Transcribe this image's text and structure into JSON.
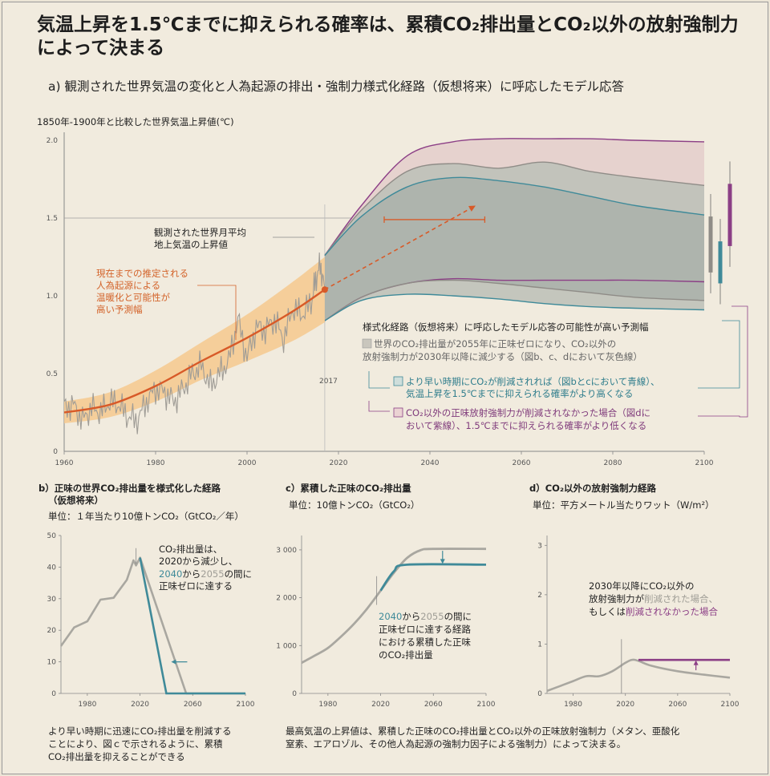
{
  "title": {
    "line1": "気温上昇を1.5℃までに抑えられる確率は、累積CO₂排出量とCO₂以外の放射強制力",
    "line2": "によって決まる"
  },
  "panel_a": {
    "subtitle": "a) 観測された世界気温の変化と人為起源の排出・強制力様式化経路（仮想将来）に呼応したモデル応答",
    "ylabel": "1850年-1900年と比較した世界気温上昇値(℃)",
    "obs_label": [
      "観測された世界月平均",
      "地上気温の上昇値"
    ],
    "est_label": [
      "現在までの推定される",
      "人為起源による",
      "温暖化と可能性が",
      "高い予測幅"
    ],
    "year_marker": "2017",
    "legend_head": "様式化経路（仮想将来）に呼応したモデル応答の可能性が高い予測幅",
    "legend_grey": [
      "世界のCO₂排出量が2055年に正味ゼロになり、CO₂以外の",
      "放射強制力が2030年以降に減少する（図b、c、dにおいて灰色線）"
    ],
    "legend_blue": [
      "より早い時期にCO₂が削減されれば（図bとcにおいて青線）、",
      "気温上昇を1.5℃までに抑えられる確率がより高くなる"
    ],
    "legend_purple": [
      "CO₂以外の正味放射強制力が削減されなかった場合（図dに",
      "おいて紫線）、1.5℃までに抑えられる確率がより低くなる"
    ]
  },
  "panel_b": {
    "title": [
      "b）正味の世界CO₂排出量を様式化した経路",
      "（仮想将来）"
    ],
    "unit": "単位：１年当たり10億トンCO₂（GtCO₂／年）",
    "note": [
      "CO₂排出量は、",
      "2020から減少し、",
      "2040",
      "から",
      "2055",
      "の間に",
      "正味ゼロに達する"
    ]
  },
  "panel_c": {
    "title": "c）累積した正味のCO₂排出量",
    "unit": "単位：10億トンCO₂（GtCO₂）",
    "note": [
      "2040",
      "から",
      "2055",
      "の間に",
      "正味ゼロに達する経路",
      "における累積した正味",
      "のCO₂排出量"
    ]
  },
  "panel_d": {
    "title": "d）CO₂以外の放射強制力経路",
    "unit": "単位：平方メートル当たりワット（W/m²）",
    "note": [
      "2030年以降にCO₂以外の",
      "放射強制力が",
      "削減された場合、",
      "もしくは",
      "削減されなかった場合"
    ]
  },
  "footer_b": [
    "より早い時期に迅速にCO₂排出量を削減する",
    "ことにより、図ｃで示されるように、累積",
    "CO₂排出量を抑えることができる"
  ],
  "footer_cd": [
    "最高気温の上昇値は、累積した正味のCO₂排出量とCO₂以外の正味放射強制力（メタン、亜酸化",
    "窒素、エアロゾル、その他人為起源の強制力因子による強制力）によって決まる。"
  ],
  "colors": {
    "grey": "#a9a7a0",
    "blue": "#3f8a99",
    "purple": "#8c3f86",
    "orange": "#d85a28",
    "band": "#f6c98e"
  },
  "chart_data": [
    {
      "type": "line",
      "xlim": [
        1960,
        2100
      ],
      "ylim": [
        0,
        2.0
      ],
      "xticks": [
        1960,
        1980,
        2000,
        2020,
        2040,
        2060,
        2080,
        2100
      ],
      "yticks": [
        "0",
        "0.5",
        "1.0",
        "1.5",
        "2.0"
      ],
      "observed": {
        "x": [
          1960,
          1962,
          1964,
          1966,
          1968,
          1970,
          1972,
          1974,
          1976,
          1978,
          1980,
          1982,
          1984,
          1986,
          1988,
          1990,
          1992,
          1994,
          1996,
          1998,
          2000,
          2002,
          2004,
          2006,
          2008,
          2010,
          2012,
          2014,
          2015,
          2016,
          2017
        ],
        "y": [
          0.28,
          0.3,
          0.2,
          0.28,
          0.25,
          0.32,
          0.3,
          0.22,
          0.2,
          0.32,
          0.4,
          0.38,
          0.32,
          0.4,
          0.5,
          0.55,
          0.42,
          0.5,
          0.58,
          0.85,
          0.6,
          0.8,
          0.78,
          0.85,
          0.72,
          0.92,
          0.88,
          0.95,
          1.1,
          1.2,
          1.05
        ]
      },
      "estimated": {
        "x": [
          1960,
          1970,
          1980,
          1990,
          2000,
          2010,
          2017
        ],
        "y": [
          0.25,
          0.3,
          0.42,
          0.58,
          0.73,
          0.9,
          1.04
        ],
        "low": [
          0.18,
          0.22,
          0.32,
          0.46,
          0.58,
          0.71,
          0.83
        ],
        "high": [
          0.32,
          0.38,
          0.52,
          0.7,
          0.88,
          1.09,
          1.25
        ]
      },
      "projection_x": [
        2017,
        2025,
        2035,
        2045,
        2055,
        2065,
        2075,
        2085,
        2100
      ],
      "purple_band": {
        "high": [
          1.26,
          1.58,
          1.9,
          1.99,
          2.01,
          2.01,
          2.01,
          2.0,
          1.99
        ],
        "low": [
          0.84,
          0.99,
          1.08,
          1.11,
          1.1,
          1.1,
          1.1,
          1.1,
          1.09
        ]
      },
      "grey_band": {
        "high": [
          1.26,
          1.55,
          1.8,
          1.85,
          1.82,
          1.86,
          1.8,
          1.76,
          1.71
        ],
        "low": [
          0.84,
          0.99,
          1.08,
          1.1,
          1.08,
          1.05,
          1.02,
          0.99,
          0.97
        ]
      },
      "blue_band": {
        "high": [
          1.26,
          1.51,
          1.7,
          1.76,
          1.74,
          1.7,
          1.64,
          1.58,
          1.52
        ],
        "low": [
          0.84,
          0.97,
          1.01,
          1.0,
          0.98,
          0.95,
          0.93,
          0.92,
          0.91
        ]
      },
      "arrow": {
        "x": [
          2017,
          2050
        ],
        "y": [
          1.04,
          1.58
        ]
      },
      "peak_range": {
        "x": [
          2030,
          2052
        ],
        "y": 1.49
      },
      "end_bars": {
        "grey": [
          1.15,
          1.51
        ],
        "blue": [
          1.08,
          1.35
        ],
        "purple": [
          1.32,
          1.72
        ]
      }
    },
    {
      "type": "line",
      "xlim": [
        1960,
        2100
      ],
      "ylim": [
        0,
        50
      ],
      "xticks": [
        1980,
        2020,
        2060,
        2100
      ],
      "yticks": [
        "0",
        "10",
        "20",
        "30",
        "40",
        "50"
      ],
      "series": [
        {
          "name": "",
          "x": [
            1960,
            1970,
            1980,
            1990,
            2000,
            2010,
            2015,
            2017,
            2020,
            2055,
            2100
          ],
          "y": [
            15,
            20,
            24,
            29,
            30,
            37,
            41,
            41,
            43,
            0,
            0
          ]
        },
        {
          "name": "",
          "x": [
            2020,
            2040,
            2100
          ],
          "y": [
            43,
            0,
            0
          ]
        }
      ]
    },
    {
      "type": "line",
      "xlim": [
        1960,
        2100
      ],
      "ylim": [
        0,
        3300
      ],
      "xticks": [
        1980,
        2020,
        2060,
        2100
      ],
      "yticks": [
        "0",
        "1 000",
        "2 000",
        "3 000"
      ],
      "series": [
        {
          "name": "",
          "x": [
            1960,
            1970,
            1980,
            1990,
            2000,
            2010,
            2020,
            2030,
            2040,
            2050,
            2060,
            2100
          ],
          "y": [
            640,
            790,
            950,
            1190,
            1460,
            1780,
            2150,
            2520,
            2830,
            2990,
            3020,
            3020
          ]
        },
        {
          "name": "",
          "x": [
            2020,
            2030,
            2040,
            2100
          ],
          "y": [
            2150,
            2550,
            2690,
            2690
          ]
        }
      ]
    },
    {
      "type": "line",
      "xlim": [
        1960,
        2100
      ],
      "ylim": [
        0,
        3.2
      ],
      "xticks": [
        1980,
        2020,
        2060,
        2100
      ],
      "yticks": [
        "0",
        "1",
        "2",
        "3"
      ],
      "series": [
        {
          "name": "",
          "x": [
            1960,
            1970,
            1980,
            1990,
            2000,
            2010,
            2020,
            2025,
            2030,
            2040,
            2060,
            2080,
            2100
          ],
          "y": [
            0.05,
            0.15,
            0.25,
            0.35,
            0.35,
            0.45,
            0.62,
            0.68,
            0.66,
            0.56,
            0.45,
            0.38,
            0.32
          ]
        },
        {
          "name": "",
          "x": [
            2030,
            2100
          ],
          "y": [
            0.68,
            0.68
          ]
        }
      ]
    }
  ]
}
